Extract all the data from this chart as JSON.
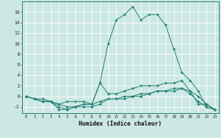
{
  "title": "",
  "xlabel": "Humidex (Indice chaleur)",
  "ylabel": "",
  "bg_color": "#cce8e4",
  "grid_color": "#ffffff",
  "line_color": "#1a7a6e",
  "xlim": [
    -0.5,
    23.5
  ],
  "ylim": [
    -3.2,
    18
  ],
  "xticks": [
    0,
    1,
    2,
    3,
    4,
    5,
    6,
    7,
    8,
    9,
    10,
    11,
    12,
    13,
    14,
    15,
    16,
    17,
    18,
    19,
    20,
    21,
    22,
    23
  ],
  "yticks": [
    -2,
    0,
    2,
    4,
    6,
    8,
    10,
    12,
    14,
    16
  ],
  "series": [
    {
      "x": [
        0,
        1,
        2,
        3,
        4,
        5,
        6,
        7,
        8,
        9,
        10,
        11,
        12,
        13,
        14,
        15,
        16,
        17,
        18,
        19,
        20,
        21,
        22,
        23
      ],
      "y": [
        0,
        -0.5,
        -0.5,
        -1,
        -2.5,
        -2.5,
        -2,
        -1.5,
        -1.5,
        2.5,
        10,
        14.5,
        15.5,
        17,
        14.5,
        15.5,
        15.5,
        13.5,
        9,
        4.5,
        3,
        1,
        -2,
        -2.5
      ]
    },
    {
      "x": [
        0,
        1,
        2,
        3,
        4,
        5,
        6,
        7,
        8,
        9,
        10,
        11,
        12,
        13,
        14,
        15,
        16,
        17,
        18,
        19,
        20,
        21,
        22,
        23
      ],
      "y": [
        0,
        -0.5,
        -1,
        -1,
        -1.5,
        -1,
        -1,
        -1,
        -1.5,
        2.5,
        0.5,
        0.5,
        1,
        1.5,
        2,
        2,
        2,
        2.5,
        2.5,
        3,
        1,
        -1.5,
        -1.5,
        -2.5
      ]
    },
    {
      "x": [
        0,
        1,
        2,
        3,
        4,
        5,
        6,
        7,
        8,
        9,
        10,
        11,
        12,
        13,
        14,
        15,
        16,
        17,
        18,
        19,
        20,
        21,
        22,
        23
      ],
      "y": [
        0,
        -0.5,
        -1,
        -1,
        -1.5,
        -2,
        -2,
        -2,
        -2,
        -1.5,
        -0.5,
        -0.5,
        -0.5,
        0,
        0,
        0.5,
        1,
        1,
        1.5,
        1.5,
        0.5,
        -1,
        -2,
        -2.5
      ]
    },
    {
      "x": [
        0,
        1,
        2,
        3,
        4,
        5,
        6,
        7,
        8,
        9,
        10,
        11,
        12,
        13,
        14,
        15,
        16,
        17,
        18,
        19,
        20,
        21,
        22,
        23
      ],
      "y": [
        0,
        -0.5,
        -1,
        -1,
        -2,
        -2.5,
        -2,
        -1.5,
        -1.5,
        -1,
        -0.5,
        -0.5,
        0,
        0,
        0.5,
        0.5,
        1,
        1,
        1,
        1.5,
        1,
        0,
        -1.5,
        -2.5
      ]
    }
  ]
}
